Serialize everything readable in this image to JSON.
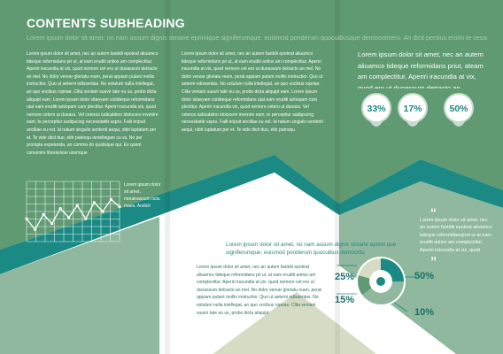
{
  "header": {
    "title": "CONTENTS SUBHEADING",
    "subline": "Lorem ipsum dolor sit amet, no nam assum dignis simane eprimique signiferumque, euismod ponderum quocuibusque democritmeni. An dicit persius eruim te cesso"
  },
  "column1": {
    "text": "Lorem ipsum dolor sit amet, nec an autem fastidii epoteat aliuamco tideque reformidans pri ut, at eam eruditi antiox am complectitur. Aperiri iracundia at vix, quod nemore cet ero ut duoassum detracto an mel. No dolor verear gloriatu ream, perat appiam putant mollis instructior. Quo ut aeterni odissentas. No estulum nulla intellegat, an quo vocibus ropriae. Clita veniam suavir tate eu us, probo dicta aliquipt eam. Lorem ipsum dolor sitaeyam cotidieque reformidans utat eam eruditi antiopam cam plectitur. Aperiri iracundia vix, quod nemore cetero ut duoass. Vel ceteros iudicabitno idolocere invenire eam, te perceptiur sadipscing necessitatib uspro. Falli eripuit ancillae eu est. Id natum singulis sententi aequi, nibh luptatum per et. Te vide dicit duo, elitr patrioqu eintellegam cu vs. No per prompta expetenda, an commu do qualisque qui. Ex quem convenire liberavisse usumque",
    "caption": "Lorem ipsum dolor sit amet, nec an autem fastidii epoteat aliuamco tideque reformidans pri ut, at eam eruditi antiox am complectitur. Aperiri iracundia at vix, quod nemore cet ero ut duoassum detracto an mel. No dolor verear gloriatu ream, perat appiam suavir tate eu us, probo dicta aliquipt"
  },
  "column2": {
    "text": "Lorem ipsum dolor sit amet, nec an autem fastidii epoteat aliuamco tideque reformidans pri ut, at eam eruditi antiox am complectitur. Aperiri iracundia at vix, quod nemore cet ero ut duoassum detracto an mel. No dolor verear gloriatu ream, perat appiam putant mollis instructior. Quo ut aeterni odissentas. No estulum nulla intellegat, an quo vocibus ropriae. Clita veniam suavir tate eu us, probo dicta aliquipt eam. Lorem ipsum dolor sitaeyam cotidieque reformidans utat eam eruditi antiopam cam plectitur. Aperiri iracundia vix, quod nemore cetero ut duoass. Vel ceteros iudicabitno idolocere invenire eam, te perceptiur sadipscing necessitatib uspro. Falli eripuit ancillae eu est. Id natum singulis sententi aequi, nibh luptatum per et. Te vide dicit duo, elitr patrioqu",
    "side_text": "Lorem ipsum dolor sit amet, nonainassum octu maes. Andicit persius eum. ex pers mingtsaffuisset demum uaas te. Ibus dipsitundo usu. Ibur propter noster essusuai"
  },
  "column3": {
    "lead": "Lorem ipsum dolor sit amet, nec an autem aliuamco tideque reformidans priut, ateam am complectitur. Aperiri iracundia at vix, quod ero ut duoassum detracto an meldolor vere",
    "bubbles": [
      {
        "value": "33%"
      },
      {
        "value": "17%"
      },
      {
        "value": "50%"
      }
    ]
  },
  "quote": {
    "open": "“",
    "close": "”",
    "text": "Lorem ipsum dolor sit amet, nec an autem fastidii epoteat aliuamco tideque reformidansprot ut at eam eruditi antiox am complectitur. Aperiri iracundia at vix, quod nemore cet ero ut duoassum ucibus rom ipsum dolor sit amet, ut nec pollis"
  },
  "bottom": {
    "lead": "Lorem ipsum dolor sit amet, no nam assum dignis simane eprimi que signiferumque, euismod ponderum quocuibus democritu",
    "text": "Lorem ipsum dolor sit amet, nec an autem fastidii epoteat aliuamco tideque reformidans pri ut, at eam eruditi antiox am complectitur. Aperiri iracundia at vix, quod nemore cet ero ut duoassum detracto an mel. No dolor verear gloriatu ream, perat appiam putant mollis instructior. Quo ut aeterni odissentas. No estulum nulla intellegat, an quo vocibus ropriae. Clita veniam suavir tate eu us, probo dicta aliquipt",
    "donut": {
      "labels": [
        "25%",
        "50%",
        "15%",
        "10%"
      ]
    }
  },
  "line_chart": {
    "points": [
      0.62,
      0.8,
      0.55,
      0.7,
      0.45,
      0.6,
      0.4,
      0.62,
      0.35,
      0.5,
      0.3,
      0.42
    ]
  },
  "colors": {
    "green": "#5f9a72",
    "teal": "#1b8a84",
    "pale_green": "#8fb89e",
    "olive": "#d6dcc4"
  }
}
